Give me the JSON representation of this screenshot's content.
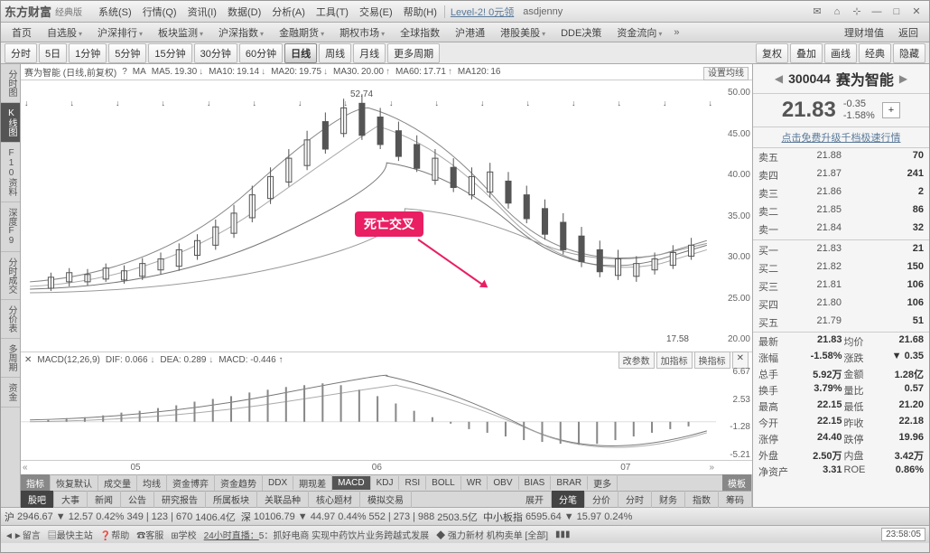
{
  "titlebar": {
    "logo": "东方财富",
    "logo_sub": "经典版",
    "menus": [
      "系统(S)",
      "行情(Q)",
      "资讯(I)",
      "数据(D)",
      "分析(A)",
      "工具(T)",
      "交易(E)",
      "帮助(H)"
    ],
    "link": "Level-2! 0元领",
    "user": "asdjenny"
  },
  "navbar": {
    "items": [
      "首页",
      "自选股",
      "沪深排行",
      "板块监测",
      "沪深指数",
      "金融期货",
      "期权市场",
      "全球指数",
      "沪港通",
      "港股美股",
      "DDE决策",
      "资金流向"
    ],
    "right": [
      "理财增值",
      "返回"
    ]
  },
  "toolbar": {
    "tf": [
      "分时",
      "5日",
      "1分钟",
      "5分钟",
      "15分钟",
      "30分钟",
      "60分钟",
      "日线",
      "周线",
      "月线",
      "更多周期"
    ],
    "active": "日线",
    "right": [
      "复权",
      "叠加",
      "画线",
      "经典",
      "隐藏"
    ]
  },
  "left_tabs": [
    "分时图",
    "K线图",
    "F10资料",
    "深度F9",
    "分时成交",
    "分价表",
    "多周期",
    "资金"
  ],
  "left_active": "K线图",
  "chart": {
    "title": "赛为智能 (日线,前复权)",
    "ma_label": "MA",
    "ma": [
      {
        "k": "MA5.",
        "v": "19.30",
        "d": "↓"
      },
      {
        "k": "MA10:",
        "v": "19.14",
        "d": "↓"
      },
      {
        "k": "MA20:",
        "v": "19.75",
        "d": "↓"
      },
      {
        "k": "MA30.",
        "v": "20.00",
        "d": "↑"
      },
      {
        "k": "MA60:",
        "v": "17.71",
        "d": "↑"
      },
      {
        "k": "MA120:",
        "v": "16",
        "d": ""
      }
    ],
    "settings_btn": "设置均线",
    "peak": "52.74",
    "low": "17.58",
    "annotation": "死亡交叉",
    "y_ticks": [
      "50.00",
      "45.00",
      "40.00",
      "35.00",
      "30.00",
      "25.00",
      "20.00"
    ],
    "dates": [
      "05",
      "06",
      "07"
    ],
    "colors": {
      "up": "#888",
      "down": "#555",
      "ma5": "#666",
      "ma10": "#888",
      "ma20": "#aaa",
      "ma30": "#777",
      "ma60": "#999",
      "annotation_bg": "#e91e63"
    }
  },
  "macd": {
    "label": "MACD(12,26,9)",
    "dif_label": "DIF:",
    "dif": "0.066",
    "dif_d": "↓",
    "dea_label": "DEA:",
    "dea": "0.289",
    "dea_d": "↓",
    "macd_label": "MACD:",
    "macd_val": "-0.446",
    "macd_d": "↑",
    "btns": [
      "改参数",
      "加指标",
      "换指标"
    ],
    "y_ticks": [
      "6.67",
      "2.53",
      "-1.28",
      "-5.21"
    ]
  },
  "indicator_tabs": [
    "指标",
    "恢复默认",
    "成交量",
    "均线",
    "资金博弈",
    "资金趋势",
    "DDX",
    "期现差",
    "MACD",
    "KDJ",
    "RSI",
    "BOLL",
    "WR",
    "OBV",
    "BIAS",
    "BRAR",
    "更多",
    "模板"
  ],
  "indicator_active": "MACD",
  "bottom_tabs": [
    "股吧",
    "大事",
    "新闻",
    "公告",
    "研究报告",
    "所属板块",
    "关联品种",
    "核心题材",
    "模拟交易"
  ],
  "bottom_active": "股吧",
  "bottom_right": [
    "展开",
    "分笔",
    "分价",
    "分时",
    "财务",
    "指数",
    "筹码"
  ],
  "stock": {
    "code": "300044",
    "name": "赛为智能",
    "price": "21.83",
    "change": "-0.35",
    "change_pct": "-1.58%",
    "upgrade": "点击免费升级千档极速行情",
    "asks": [
      {
        "l": "卖五",
        "p": "21.88",
        "v": "70"
      },
      {
        "l": "卖四",
        "p": "21.87",
        "v": "241"
      },
      {
        "l": "卖三",
        "p": "21.86",
        "v": "2"
      },
      {
        "l": "卖二",
        "p": "21.85",
        "v": "86"
      },
      {
        "l": "卖一",
        "p": "21.84",
        "v": "32"
      }
    ],
    "bids": [
      {
        "l": "买一",
        "p": "21.83",
        "v": "21"
      },
      {
        "l": "买二",
        "p": "21.82",
        "v": "150"
      },
      {
        "l": "买三",
        "p": "21.81",
        "v": "106"
      },
      {
        "l": "买四",
        "p": "21.80",
        "v": "106"
      },
      {
        "l": "买五",
        "p": "21.79",
        "v": "51"
      }
    ],
    "info": [
      [
        "最新",
        "21.83",
        "均价",
        "21.68"
      ],
      [
        "涨幅",
        "-1.58%",
        "涨跌",
        "▼ 0.35"
      ],
      [
        "总手",
        "5.92万",
        "金额",
        "1.28亿"
      ],
      [
        "换手",
        "3.79%",
        "量比",
        "0.57"
      ],
      [
        "最高",
        "22.15",
        "最低",
        "21.20"
      ],
      [
        "今开",
        "22.15",
        "昨收",
        "22.18"
      ],
      [
        "涨停",
        "24.40",
        "跌停",
        "19.96"
      ],
      [
        "外盘",
        "2.50万",
        "内盘",
        "3.42万"
      ],
      [
        "净资产",
        "3.31",
        "ROE",
        "0.86%"
      ]
    ]
  },
  "status": {
    "sh_label": "沪",
    "sh": "2946.67",
    "sh_chg": "▼ 12.57",
    "sh_pct": "0.42%",
    "sh_v1": "349",
    "sh_v2": "123",
    "sh_v3": "670",
    "sh_amt": "1406.4亿",
    "sz_label": "深",
    "sz": "10106.79",
    "sz_chg": "▼ 44.97",
    "sz_pct": "0.44%",
    "sz_v1": "552",
    "sz_v2": "273",
    "sz_v3": "988",
    "sz_amt": "2503.5亿",
    "zxb_label": "中小板指",
    "zxb": "6595.64",
    "zxb_chg": "▼ 15.97",
    "zxb_pct": "0.24%"
  },
  "bottombar": {
    "links": [
      "◄►留言",
      "▤最快主站",
      "❓帮助",
      "☎客服",
      "⊞学校"
    ],
    "broadcast_label": "24小时直播：",
    "broadcast": "5：抓好电商 实现中药饮片业务跨越式发展",
    "ticker": "◆ 强力新材 机构卖单 [全部]",
    "time": "23:58:05"
  }
}
